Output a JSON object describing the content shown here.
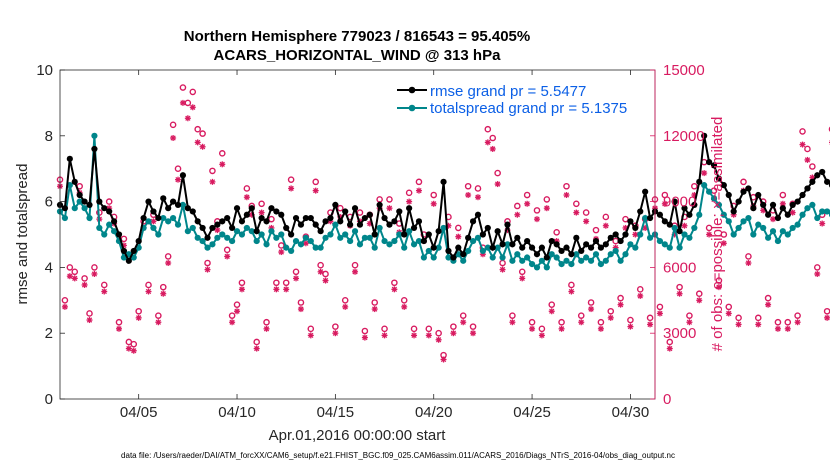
{
  "chart_data": {
    "type": "line",
    "title_line1": "Northern Hemisphere 779023 / 816543 = 95.405%",
    "title_line2": "ACARS_HORIZONTAL_WIND @ 313 hPa",
    "xlabel": "Apr.01,2016 00:00:00 start",
    "ylabel": "rmse and totalspread",
    "y2label": "# of obs: o=possible; ×=assimilated",
    "xlim": [
      1,
      31.25
    ],
    "ylim": [
      0,
      10
    ],
    "y2lim": [
      0,
      15000
    ],
    "xticks": [
      5,
      10,
      15,
      20,
      25,
      30
    ],
    "xtick_labels": [
      "04/05",
      "04/10",
      "04/15",
      "04/20",
      "04/25",
      "04/30"
    ],
    "yticks": [
      0,
      2,
      4,
      6,
      8,
      10
    ],
    "y2ticks": [
      0,
      3000,
      6000,
      9000,
      12000,
      15000
    ],
    "legend": [
      "rmse grand pr = 5.5477",
      "totalspread grand pr = 5.1375"
    ],
    "colors": {
      "rmse": "#000000",
      "spread": "#00868b",
      "obs": "#d81b60",
      "legend_text": "#0b5fe6"
    },
    "footer": "data file: /Users/raeder/DAI/ATM_forcXX/CAM6_setup/f.e21.FHIST_BGC.f09_025.CAM6assim.011/ACARS_2016/Diags_NTrS_2016-04/obs_diag_output.nc",
    "series": [
      {
        "name": "rmse",
        "x_start": 1.0,
        "x_step": 0.25,
        "values": [
          5.9,
          5.8,
          7.3,
          6.6,
          6.2,
          6.0,
          5.9,
          7.6,
          6.0,
          5.8,
          5.7,
          5.4,
          5.0,
          4.5,
          4.2,
          4.5,
          4.8,
          5.5,
          6.0,
          5.7,
          5.5,
          6.1,
          5.8,
          6.0,
          5.9,
          6.8,
          5.8,
          5.7,
          5.4,
          5.2,
          4.9,
          5.2,
          5.3,
          5.4,
          5.5,
          5.2,
          5.8,
          5.4,
          5.6,
          5.8,
          5.1,
          5.5,
          5.4,
          5.8,
          5.7,
          5.6,
          5.2,
          5.0,
          5.5,
          5.3,
          5.5,
          5.5,
          5.3,
          5.1,
          5.4,
          5.5,
          5.9,
          5.4,
          5.7,
          5.3,
          5.8,
          5.3,
          5.5,
          5.6,
          5.0,
          5.9,
          5.5,
          5.3,
          5.4,
          5.7,
          5.0,
          5.8,
          5.2,
          5.4,
          4.8,
          5.0,
          4.6,
          5.1,
          6.6,
          4.5,
          4.3,
          4.6,
          4.4,
          4.9,
          5.4,
          5.6,
          5.0,
          5.2,
          4.6,
          5.1,
          4.7,
          5.3,
          4.7,
          4.9,
          4.6,
          4.8,
          4.6,
          4.4,
          4.6,
          4.3,
          4.8,
          4.7,
          4.5,
          4.6,
          4.4,
          4.9,
          4.5,
          4.7,
          4.6,
          4.8,
          4.6,
          4.7,
          4.9,
          5.0,
          4.8,
          5.0,
          5.4,
          5.2,
          5.7,
          6.3,
          5.5,
          5.7,
          5.6,
          5.4,
          5.3,
          6.0,
          5.1,
          5.8,
          5.6,
          5.9,
          6.6,
          8.0,
          7.2,
          7.1,
          6.7,
          6.5,
          6.2,
          5.7,
          6.0,
          6.3,
          6.4,
          5.8,
          6.2,
          5.9,
          5.6,
          5.9,
          5.5,
          5.8,
          5.6,
          5.9,
          6.0,
          6.2,
          6.4,
          6.6,
          6.8,
          6.9,
          6.6,
          6.5
        ]
      },
      {
        "name": "totalspread",
        "x_start": 1.0,
        "x_step": 0.25,
        "values": [
          5.7,
          5.5,
          6.5,
          5.8,
          6.0,
          5.8,
          5.5,
          8.0,
          5.2,
          5.0,
          5.3,
          5.1,
          4.8,
          4.3,
          4.4,
          4.3,
          4.6,
          5.2,
          5.4,
          5.2,
          5.0,
          5.5,
          5.4,
          5.5,
          5.3,
          5.9,
          5.1,
          5.2,
          4.9,
          4.8,
          4.6,
          4.7,
          4.9,
          5.0,
          4.9,
          4.8,
          5.1,
          5.0,
          5.2,
          5.1,
          4.8,
          5.0,
          4.7,
          5.1,
          4.9,
          5.0,
          4.6,
          4.5,
          4.8,
          4.7,
          4.9,
          4.8,
          4.6,
          4.6,
          4.9,
          5.0,
          5.3,
          4.9,
          5.0,
          4.8,
          5.1,
          4.7,
          4.9,
          4.9,
          4.6,
          5.2,
          4.8,
          4.7,
          4.8,
          5.0,
          4.6,
          5.1,
          4.7,
          4.8,
          4.3,
          4.5,
          4.3,
          4.6,
          5.2,
          4.3,
          4.2,
          4.4,
          4.2,
          4.5,
          4.8,
          4.9,
          4.5,
          4.6,
          4.3,
          4.6,
          4.3,
          4.7,
          4.2,
          4.4,
          4.2,
          4.3,
          4.1,
          4.0,
          4.2,
          4.0,
          4.4,
          4.3,
          4.1,
          4.2,
          4.1,
          4.4,
          4.2,
          4.3,
          4.2,
          4.4,
          4.1,
          4.2,
          4.4,
          4.5,
          4.2,
          4.4,
          4.7,
          4.6,
          5.0,
          5.5,
          4.9,
          5.0,
          4.8,
          4.7,
          4.6,
          5.2,
          4.6,
          5.0,
          4.9,
          5.2,
          5.6,
          6.5,
          6.3,
          6.1,
          5.9,
          5.6,
          5.4,
          5.0,
          5.2,
          5.4,
          5.5,
          5.0,
          5.3,
          5.2,
          4.9,
          5.1,
          4.8,
          5.1,
          5.0,
          5.2,
          5.3,
          5.6,
          5.8,
          5.9,
          5.5,
          5.7,
          5.7,
          5.6
        ]
      },
      {
        "name": "possible",
        "x_start": 1.0,
        "x_step": 0.25,
        "values": [
          10000,
          4500,
          6000,
          5800,
          9700,
          5500,
          3900,
          6000,
          8500,
          5200,
          9000,
          8300,
          3500,
          7300,
          2600,
          2500,
          4000,
          8100,
          5200,
          8400,
          3800,
          5100,
          6500,
          12500,
          10500,
          14200,
          13500,
          14000,
          12300,
          12100,
          6200,
          10400,
          8100,
          11200,
          6800,
          3800,
          4300,
          5300,
          9600,
          8800,
          2600,
          8900,
          3500,
          8200,
          5300,
          7000,
          5300,
          10000,
          5800,
          4400,
          7400,
          3200,
          9900,
          6100,
          5700,
          8500,
          3300,
          8700,
          4500,
          8300,
          6100,
          8500,
          3100,
          8400,
          4400,
          9100,
          3200,
          9100,
          5300,
          8000,
          4500,
          9400,
          3200,
          9900,
          7500,
          3200,
          9300,
          3000,
          2000,
          8300,
          3300,
          7800,
          3800,
          9700,
          3300,
          9600,
          6900,
          12300,
          11900,
          10300,
          6200,
          8100,
          3800,
          8800,
          5800,
          9300,
          3500,
          8600,
          3200,
          9100,
          4300,
          7600,
          3500,
          9700,
          5200,
          8900,
          3800,
          8500,
          4400,
          7700,
          3500,
          8300,
          4000,
          7200,
          4600,
          8200,
          3600,
          7900,
          5000,
          8200,
          3700,
          9100,
          4200,
          9300,
          2600,
          7900,
          5100,
          8300,
          3800,
          9700,
          4800,
          10800,
          7800,
          9500,
          5400,
          7500,
          4200,
          8800,
          3700,
          9900,
          6500,
          9200,
          3700,
          9000,
          4600,
          8600,
          3500,
          9300,
          3500,
          8900,
          3800,
          12200,
          11400,
          10600,
          6000,
          8400,
          4000,
          12300
        ]
      },
      {
        "name": "assimilated",
        "x_start": 1.0,
        "x_step": 0.25,
        "values": [
          9700,
          4200,
          5600,
          5500,
          9400,
          5200,
          3600,
          5700,
          8200,
          4900,
          8700,
          8000,
          3200,
          7000,
          2300,
          2200,
          3700,
          7800,
          4900,
          8100,
          3500,
          4800,
          6200,
          11900,
          10000,
          13500,
          12800,
          13300,
          11700,
          11500,
          5900,
          9900,
          7700,
          10700,
          6500,
          3500,
          4000,
          5000,
          9200,
          8400,
          2300,
          8500,
          3200,
          7800,
          5000,
          6700,
          5000,
          9600,
          5500,
          4100,
          7100,
          2900,
          9500,
          5800,
          5400,
          8100,
          3000,
          8300,
          4200,
          7900,
          5800,
          8100,
          2800,
          8000,
          4100,
          8700,
          2900,
          8700,
          5000,
          7600,
          4200,
          9000,
          2900,
          9500,
          7200,
          2900,
          8900,
          2700,
          1800,
          7900,
          3000,
          7400,
          3500,
          9300,
          3000,
          9200,
          6600,
          11700,
          11400,
          9800,
          5900,
          7700,
          3500,
          8400,
          5500,
          8900,
          3200,
          8200,
          2900,
          8700,
          4000,
          7200,
          3200,
          9300,
          4900,
          8500,
          3500,
          8100,
          4100,
          7300,
          3200,
          7900,
          3700,
          6900,
          4300,
          7800,
          3300,
          7500,
          4700,
          7800,
          3400,
          8700,
          3900,
          8900,
          2300,
          7500,
          4800,
          7900,
          3500,
          9300,
          4500,
          10300,
          7500,
          9100,
          5100,
          7100,
          3900,
          8400,
          3400,
          9500,
          6200,
          8800,
          3400,
          8600,
          4300,
          8200,
          3200,
          8900,
          3200,
          8500,
          3500,
          11600,
          10900,
          10100,
          5700,
          8000,
          3700,
          11700
        ]
      }
    ]
  }
}
